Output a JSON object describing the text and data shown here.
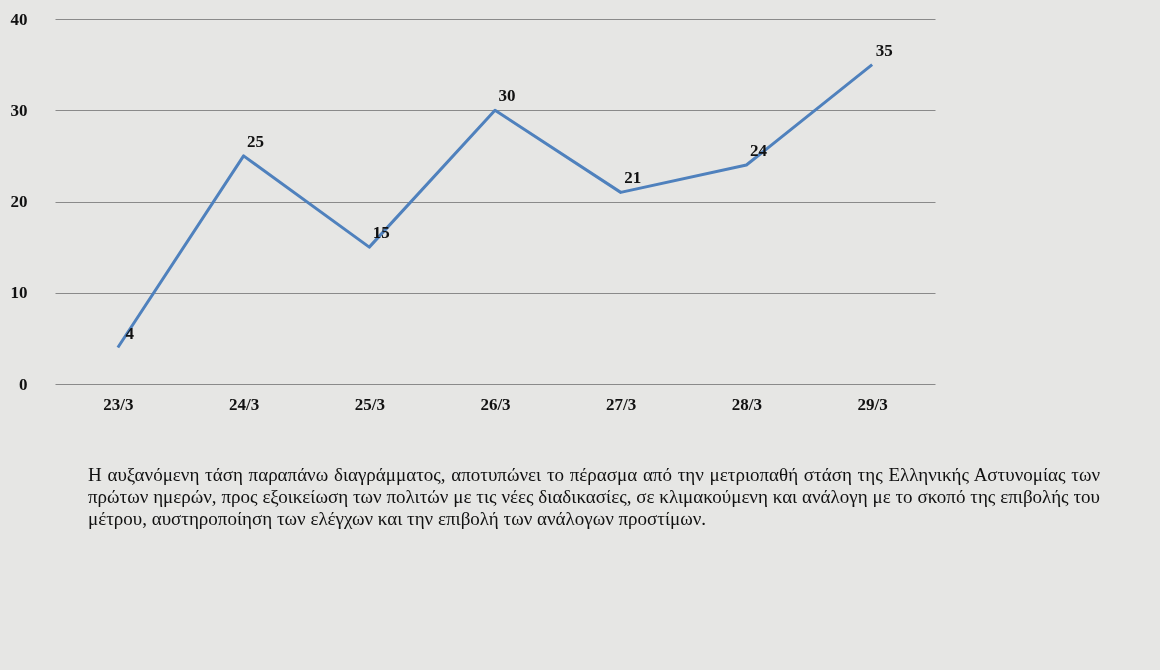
{
  "chart_data": {
    "type": "line",
    "categories": [
      "23/3",
      "24/3",
      "25/3",
      "26/3",
      "27/3",
      "28/3",
      "29/3"
    ],
    "values": [
      4,
      25,
      15,
      30,
      21,
      24,
      35
    ],
    "color": "#4f81bd",
    "ylim": [
      0,
      40
    ],
    "yticks": [
      0,
      10,
      20,
      30,
      40
    ],
    "grid": "y",
    "data_labels": true,
    "annotations": [
      "Η αυξανόμενη τάση παραπάνω διαγράμματος, αποτυπώνει το πέρασμα από την μετριοπαθή στάση της Ελληνικής Αστυνομίας των πρώτων ημερών, προς εξοικείωση των πολιτών με τις νέες διαδικασίες, σε κλιμακούμενη και ανάλογη με το σκοπό της επιβολής του μέτρου, αυστηροποίηση των ελέγχων και την επιβολή των ανάλογων προστίμων."
    ]
  }
}
